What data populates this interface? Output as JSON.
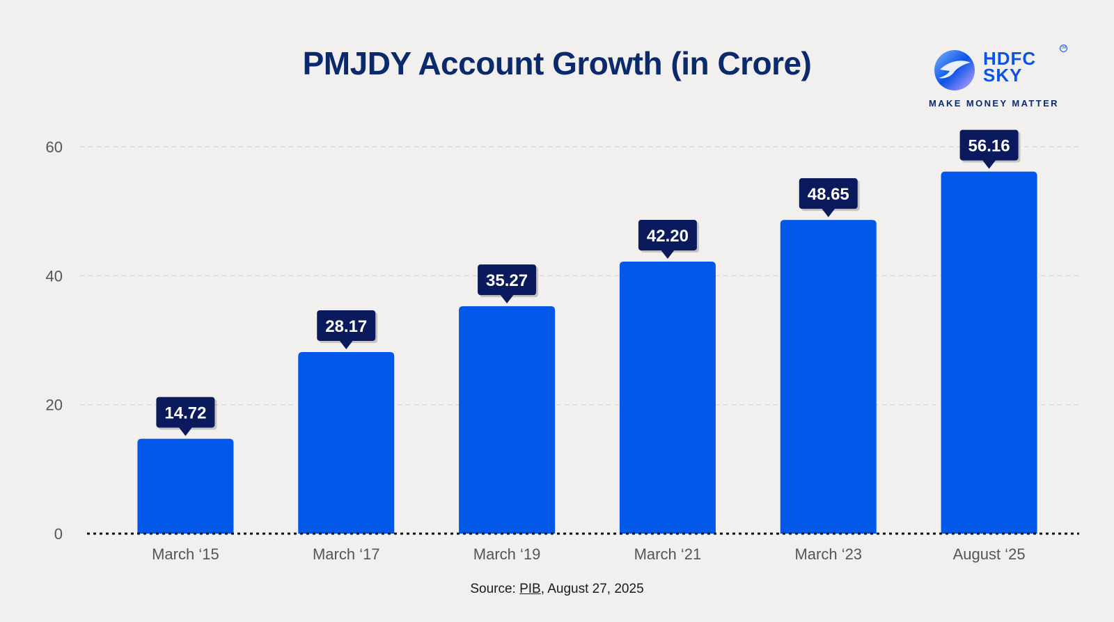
{
  "brand": {
    "name_line1": "HDFC",
    "name_line2": "SKY",
    "tagline": "MAKE MONEY MATTER",
    "tm": "TM",
    "primary_color": "#0a53e6",
    "dark_color": "#0a1a5c"
  },
  "chart_data": {
    "type": "bar",
    "title": "PMJDY Account Growth (in Crore)",
    "categories": [
      "March ‘15",
      "March ‘17",
      "March ‘19",
      "March ‘21",
      "March ‘23",
      "August ‘25"
    ],
    "values": [
      14.72,
      28.17,
      35.27,
      42.2,
      48.65,
      56.16
    ],
    "value_labels": [
      "14.72",
      "28.17",
      "35.27",
      "42.20",
      "48.65",
      "56.16"
    ],
    "yticks": [
      0,
      20,
      40,
      60
    ],
    "ylim": [
      0,
      60
    ],
    "xlabel": "",
    "ylabel": "",
    "grid": true,
    "bar_color": "#0258e8",
    "label_color": "#0a1a5c"
  },
  "footer": {
    "source_prefix": "Source: ",
    "source_link": "PIB",
    "source_suffix": ", August 27, 2025"
  }
}
